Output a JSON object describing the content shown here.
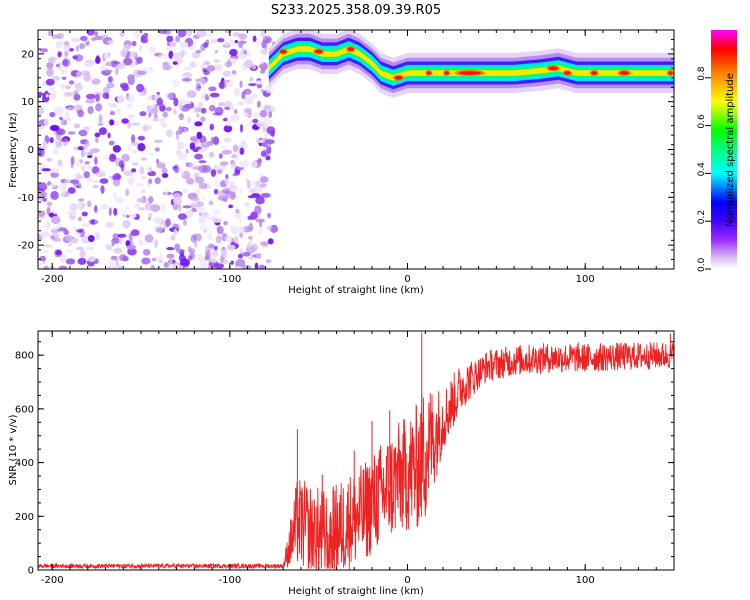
{
  "title": "S233.2025.358.09.39.R05",
  "chart_data": [
    {
      "type": "heatmap",
      "title": "",
      "xlabel": "Height of straight line (km)",
      "ylabel": "Frequency (Hz)",
      "xlim": [
        -208,
        150
      ],
      "ylim": [
        -25,
        25
      ],
      "xticks": [
        -200,
        -100,
        0,
        100
      ],
      "xtick_labels": [
        "-200",
        "-100",
        "0",
        "100"
      ],
      "yticks": [
        -20,
        -10,
        0,
        10,
        20
      ],
      "ytick_labels": [
        "-20",
        "-10",
        "0",
        "10",
        "20"
      ],
      "noise_region_x": [
        -208,
        -75
      ],
      "signal_track": [
        {
          "x": -78,
          "f": 17
        },
        {
          "x": -70,
          "f": 20
        },
        {
          "x": -62,
          "f": 21
        },
        {
          "x": -55,
          "f": 21
        },
        {
          "x": -48,
          "f": 20
        },
        {
          "x": -40,
          "f": 20
        },
        {
          "x": -33,
          "f": 21
        },
        {
          "x": -27,
          "f": 20
        },
        {
          "x": -20,
          "f": 18
        },
        {
          "x": -15,
          "f": 16
        },
        {
          "x": -8,
          "f": 15
        },
        {
          "x": 0,
          "f": 16
        },
        {
          "x": 10,
          "f": 16
        },
        {
          "x": 20,
          "f": 16
        },
        {
          "x": 40,
          "f": 16
        },
        {
          "x": 60,
          "f": 16
        },
        {
          "x": 75,
          "f": 16.5
        },
        {
          "x": 85,
          "f": 17
        },
        {
          "x": 95,
          "f": 16
        },
        {
          "x": 110,
          "f": 16
        },
        {
          "x": 125,
          "f": 16
        },
        {
          "x": 140,
          "f": 16
        },
        {
          "x": 150,
          "f": 16
        }
      ],
      "colorbar": {
        "label": "Normalized spectral amplitude",
        "range": [
          0,
          1
        ],
        "ticks": [
          0,
          0.2,
          0.4,
          0.6,
          0.8
        ],
        "tick_labels": [
          "0.0",
          "0.2",
          "0.4",
          "0.6",
          "0.8"
        ],
        "colors": [
          "#ffffff",
          "#d7b8f0",
          "#9b30ff",
          "#4400ff",
          "#0000ff",
          "#00ffff",
          "#00ff80",
          "#00ff00",
          "#ffff00",
          "#ff8000",
          "#ff0000",
          "#ff00ff"
        ]
      }
    },
    {
      "type": "line",
      "title": "",
      "xlabel": "Height of straight line (km)",
      "ylabel": "SNR (10 * v/v)",
      "xlim": [
        -208,
        150
      ],
      "ylim": [
        0,
        890
      ],
      "xticks": [
        -200,
        -100,
        0,
        100
      ],
      "xtick_labels": [
        "-200",
        "-100",
        "0",
        "100"
      ],
      "yticks": [
        0,
        200,
        400,
        600,
        800
      ],
      "ytick_labels": [
        "0",
        "200",
        "400",
        "600",
        "800"
      ],
      "series": [
        {
          "name": "SNR",
          "color": "#ee2222",
          "trend": [
            {
              "x": -208,
              "y": 15
            },
            {
              "x": -70,
              "y": 15
            },
            {
              "x": -62,
              "y": 180
            },
            {
              "x": -55,
              "y": 150
            },
            {
              "x": -45,
              "y": 120
            },
            {
              "x": -35,
              "y": 170
            },
            {
              "x": -25,
              "y": 210
            },
            {
              "x": -15,
              "y": 280
            },
            {
              "x": -5,
              "y": 340
            },
            {
              "x": 5,
              "y": 380
            },
            {
              "x": 10,
              "y": 440
            },
            {
              "x": 20,
              "y": 560
            },
            {
              "x": 30,
              "y": 680
            },
            {
              "x": 45,
              "y": 760
            },
            {
              "x": 60,
              "y": 780
            },
            {
              "x": 80,
              "y": 790
            },
            {
              "x": 100,
              "y": 790
            },
            {
              "x": 120,
              "y": 795
            },
            {
              "x": 150,
              "y": 800
            }
          ],
          "noise_amplitude": [
            {
              "x": -208,
              "a": 8
            },
            {
              "x": -70,
              "a": 8
            },
            {
              "x": -62,
              "a": 170
            },
            {
              "x": -20,
              "a": 190
            },
            {
              "x": 0,
              "a": 220
            },
            {
              "x": 10,
              "a": 260
            },
            {
              "x": 20,
              "a": 120
            },
            {
              "x": 40,
              "a": 60
            },
            {
              "x": 150,
              "a": 50
            }
          ],
          "peaks": [
            {
              "x": -62,
              "y": 525
            },
            {
              "x": -48,
              "y": 355
            },
            {
              "x": -30,
              "y": 445
            },
            {
              "x": -20,
              "y": 555
            },
            {
              "x": -10,
              "y": 595
            },
            {
              "x": 8,
              "y": 885
            },
            {
              "x": 10,
              "y": 200
            },
            {
              "x": 148,
              "y": 880
            }
          ]
        }
      ]
    }
  ]
}
